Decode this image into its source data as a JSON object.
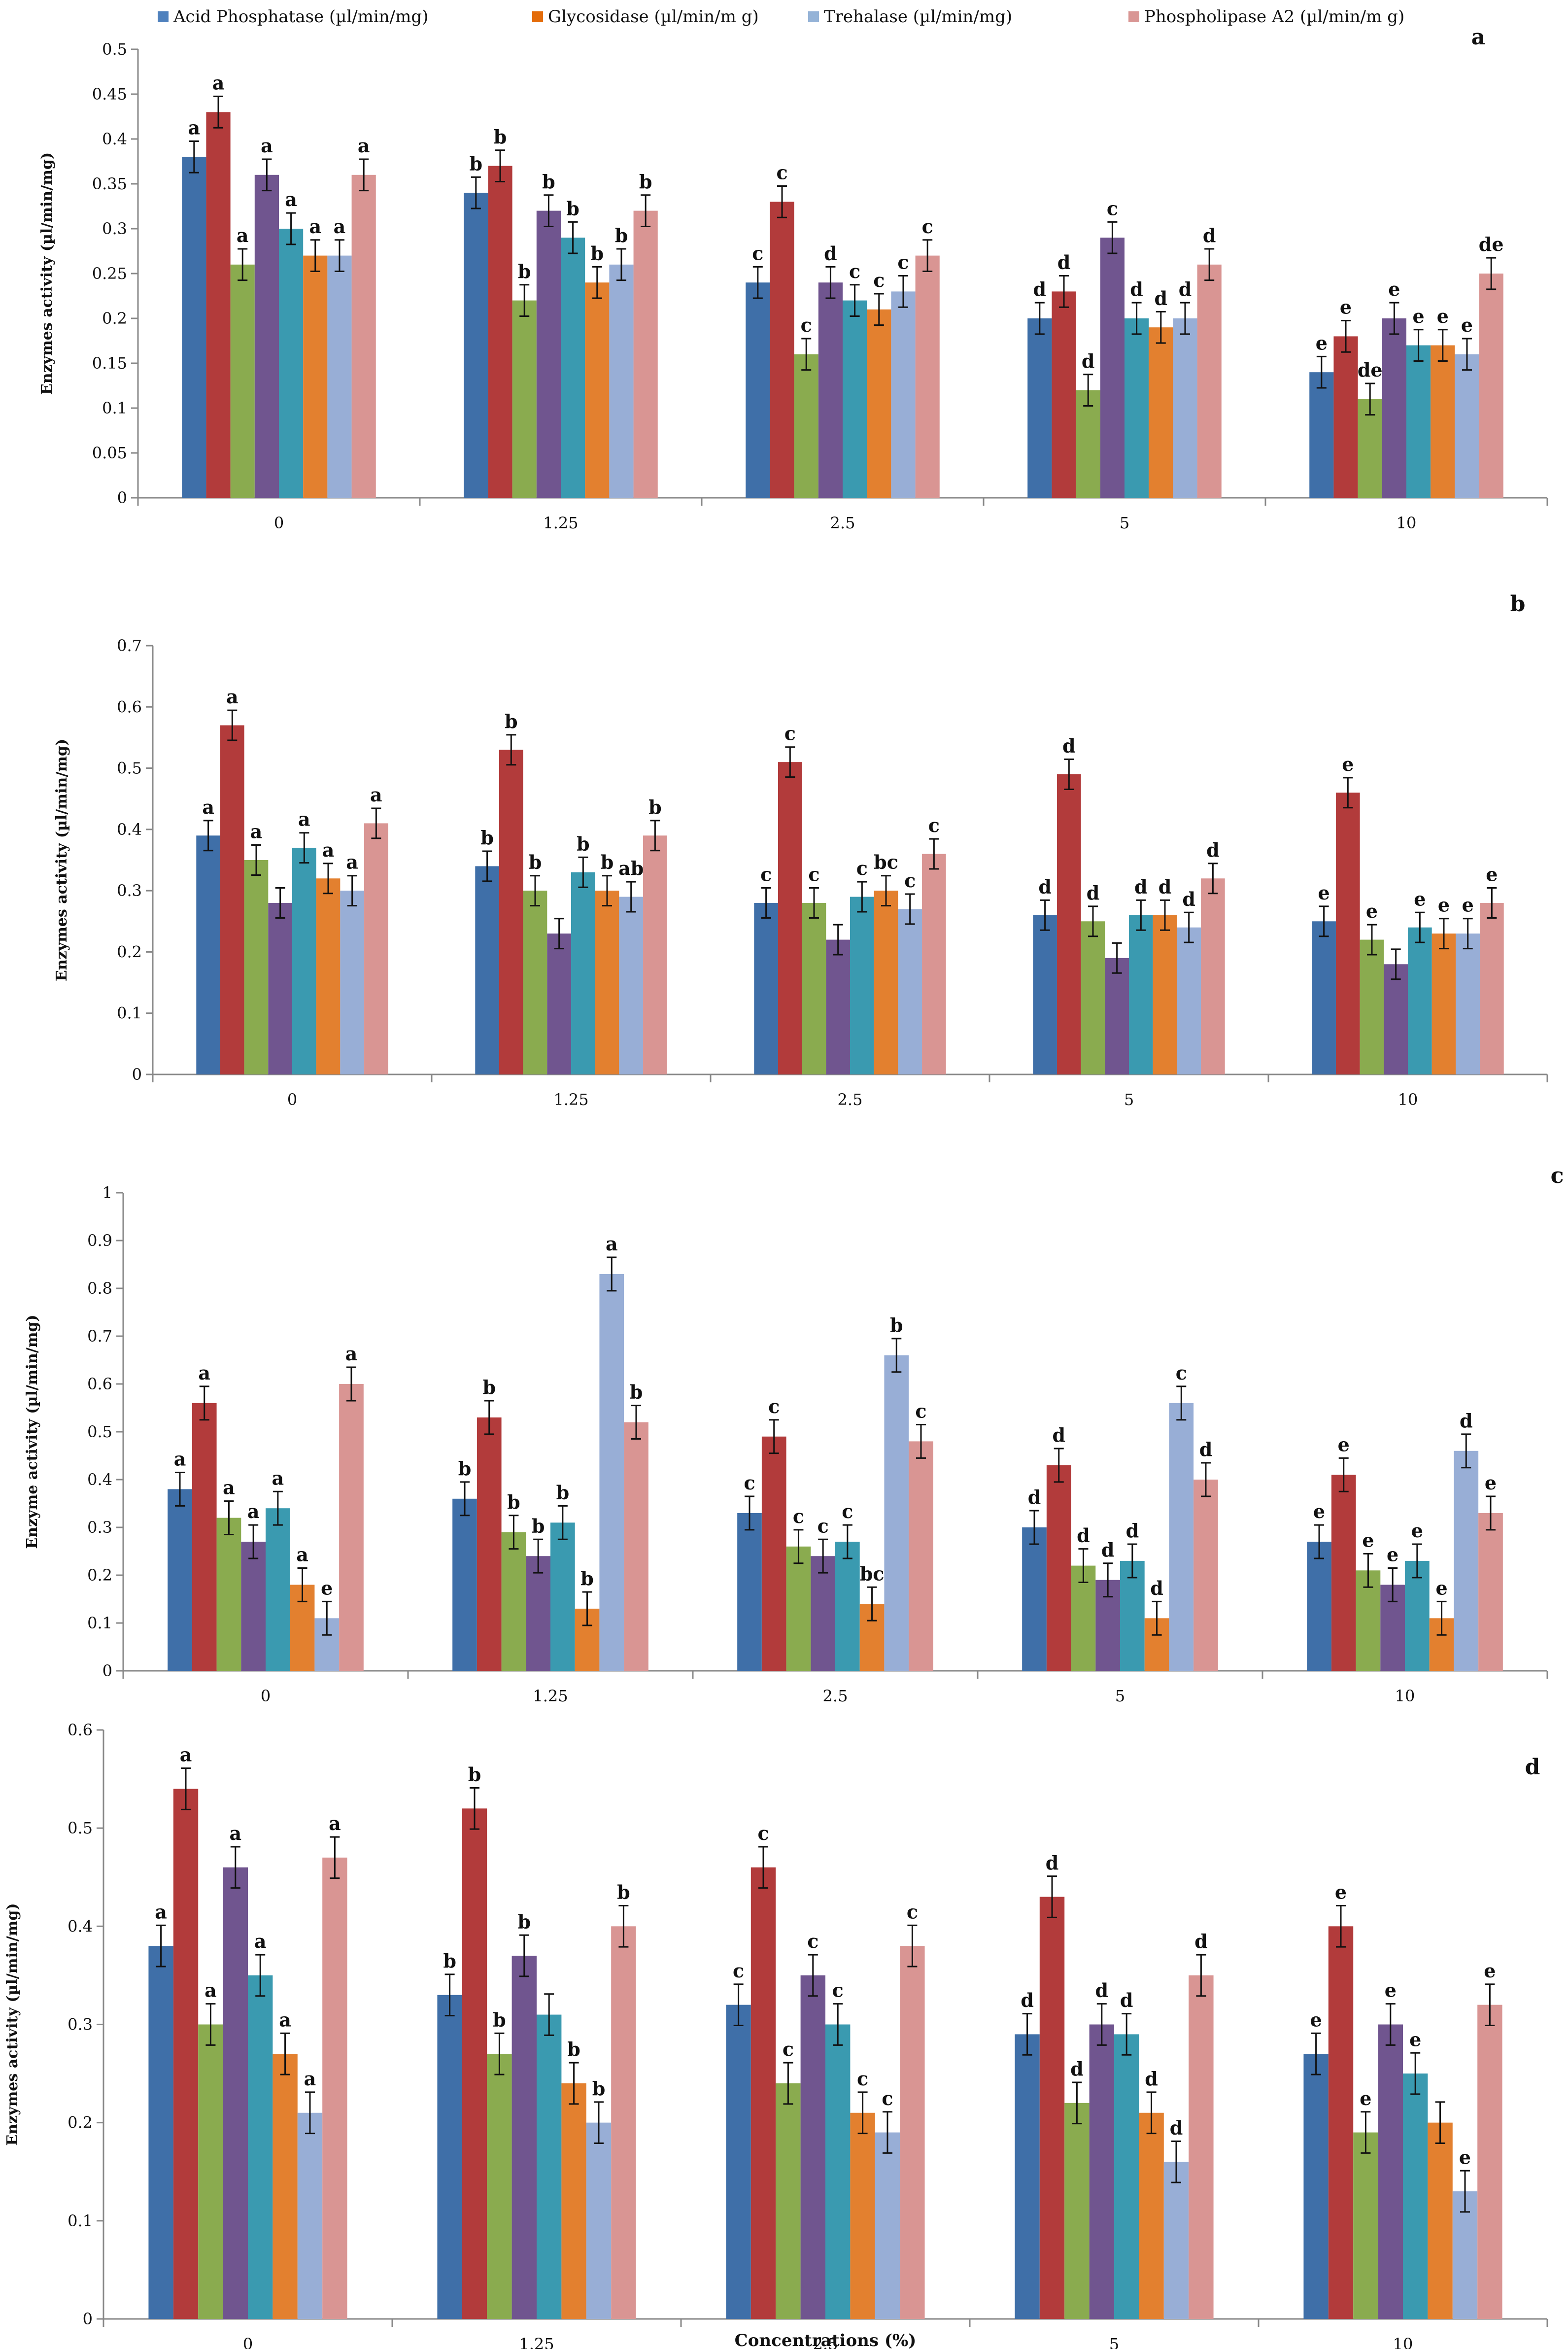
{
  "legend": [
    {
      "label": "Acid Phosphatase (µl/min/mg)",
      "color": "#4f81bd"
    },
    {
      "label": "Glycosidase (µl/min/m g)",
      "color": "#e46c0a"
    },
    {
      "label": "Trehalase (µl/min/mg)",
      "color": "#95b3d7"
    },
    {
      "label": "Phospholipase A2  (µl/min/m g)",
      "color": "#d99694"
    }
  ],
  "chart_data": [
    {
      "type": "bar",
      "panel_label": "a",
      "categories": [
        "0",
        "1.25",
        "2.5",
        "5",
        "10"
      ],
      "ylabel": "Enzymes activity (µl/min/mg)",
      "xlabel": "",
      "ylim": [
        0,
        0.5
      ],
      "yticks": [
        0,
        0.05,
        0.1,
        0.15,
        0.2,
        0.25,
        0.3,
        0.35,
        0.4,
        0.45,
        0.5
      ],
      "ytick_labels": [
        "0",
        "0.05",
        "0.1",
        "0.15",
        "0.2",
        "0.25",
        "0.3",
        "0.35",
        "0.4",
        "0.45",
        "0.5"
      ],
      "series": [
        {
          "color": "#3f6fa8",
          "values": [
            0.38,
            0.34,
            0.24,
            0.2,
            0.14
          ],
          "labels": [
            "a",
            "b",
            "c",
            "d",
            "e"
          ]
        },
        {
          "color": "#b23b3b",
          "values": [
            0.43,
            0.37,
            0.33,
            0.23,
            0.18
          ],
          "labels": [
            "a",
            "b",
            "c",
            "d",
            "e"
          ]
        },
        {
          "color": "#8aab4f",
          "values": [
            0.26,
            0.22,
            0.16,
            0.12,
            0.11
          ],
          "labels": [
            "a",
            "b",
            "c",
            "d",
            "de"
          ]
        },
        {
          "color": "#70558f",
          "values": [
            0.36,
            0.32,
            0.24,
            0.29,
            0.2
          ],
          "labels": [
            "a",
            "b",
            "d",
            "c",
            "e"
          ]
        },
        {
          "color": "#3a9ab0",
          "values": [
            0.3,
            0.29,
            0.22,
            0.2,
            0.17
          ],
          "labels": [
            "a",
            "b",
            "c",
            "d",
            "e"
          ]
        },
        {
          "color": "#e3802f",
          "values": [
            0.27,
            0.24,
            0.21,
            0.19,
            0.17
          ],
          "labels": [
            "a",
            "b",
            "c",
            "d",
            "e"
          ]
        },
        {
          "color": "#98aed6",
          "values": [
            0.27,
            0.26,
            0.23,
            0.2,
            0.16
          ],
          "labels": [
            "a",
            "b",
            "c",
            "d",
            "e"
          ]
        },
        {
          "color": "#d99593",
          "values": [
            0.36,
            0.32,
            0.27,
            0.26,
            0.25
          ],
          "labels": [
            "a",
            "b",
            "c",
            "d",
            "de"
          ]
        }
      ]
    },
    {
      "type": "bar",
      "panel_label": "b",
      "categories": [
        "0",
        "1.25",
        "2.5",
        "5",
        "10"
      ],
      "ylabel": "Enzymes activity (µl/min/mg)",
      "xlabel": "",
      "ylim": [
        0,
        0.7
      ],
      "yticks": [
        0,
        0.1,
        0.2,
        0.3,
        0.4,
        0.5,
        0.6,
        0.7
      ],
      "ytick_labels": [
        "0",
        "0.1",
        "0.2",
        "0.3",
        "0.4",
        "0.5",
        "0.6",
        "0.7"
      ],
      "series": [
        {
          "color": "#3f6fa8",
          "values": [
            0.39,
            0.34,
            0.28,
            0.26,
            0.25
          ],
          "labels": [
            "a",
            "b",
            "c",
            "d",
            "e"
          ]
        },
        {
          "color": "#b23b3b",
          "values": [
            0.57,
            0.53,
            0.51,
            0.49,
            0.46
          ],
          "labels": [
            "a",
            "b",
            "c",
            "d",
            "e"
          ]
        },
        {
          "color": "#8aab4f",
          "values": [
            0.35,
            0.3,
            0.28,
            0.25,
            0.22
          ],
          "labels": [
            "a",
            "b",
            "c",
            "d",
            "e"
          ]
        },
        {
          "color": "#70558f",
          "values": [
            0.28,
            0.23,
            0.22,
            0.19,
            0.18
          ],
          "labels": [
            "",
            "",
            "",
            "",
            ""
          ]
        },
        {
          "color": "#3a9ab0",
          "values": [
            0.37,
            0.33,
            0.29,
            0.26,
            0.24
          ],
          "labels": [
            "a",
            "b",
            "c",
            "d",
            "e"
          ]
        },
        {
          "color": "#e3802f",
          "values": [
            0.32,
            0.3,
            0.3,
            0.26,
            0.23
          ],
          "labels": [
            "a",
            "b",
            "bc",
            "d",
            "e"
          ]
        },
        {
          "color": "#98aed6",
          "values": [
            0.3,
            0.29,
            0.27,
            0.24,
            0.23
          ],
          "labels": [
            "a",
            "ab",
            "c",
            "d",
            "e"
          ]
        },
        {
          "color": "#d99593",
          "values": [
            0.41,
            0.39,
            0.36,
            0.32,
            0.28
          ],
          "labels": [
            "a",
            "b",
            "c",
            "d",
            "e"
          ]
        }
      ]
    },
    {
      "type": "bar",
      "panel_label": "c",
      "categories": [
        "0",
        "1.25",
        "2.5",
        "5",
        "10"
      ],
      "ylabel": "Enzyme activity (µl/min/mg)",
      "xlabel": "",
      "ylim": [
        0,
        1
      ],
      "yticks": [
        0,
        0.1,
        0.2,
        0.3,
        0.4,
        0.5,
        0.6,
        0.7,
        0.8,
        0.9,
        1
      ],
      "ytick_labels": [
        "0",
        "0.1",
        "0.2",
        "0.3",
        "0.4",
        "0.5",
        "0.6",
        "0.7",
        "0.8",
        "0.9",
        "1"
      ],
      "series": [
        {
          "color": "#3f6fa8",
          "values": [
            0.38,
            0.36,
            0.33,
            0.3,
            0.27
          ],
          "labels": [
            "a",
            "b",
            "c",
            "d",
            "e"
          ]
        },
        {
          "color": "#b23b3b",
          "values": [
            0.56,
            0.53,
            0.49,
            0.43,
            0.41
          ],
          "labels": [
            "a",
            "b",
            "c",
            "d",
            "e"
          ]
        },
        {
          "color": "#8aab4f",
          "values": [
            0.32,
            0.29,
            0.26,
            0.22,
            0.21
          ],
          "labels": [
            "a",
            "b",
            "c",
            "d",
            "e"
          ]
        },
        {
          "color": "#70558f",
          "values": [
            0.27,
            0.24,
            0.24,
            0.19,
            0.18
          ],
          "labels": [
            "a",
            "b",
            "c",
            "d",
            "e"
          ]
        },
        {
          "color": "#3a9ab0",
          "values": [
            0.34,
            0.31,
            0.27,
            0.23,
            0.23
          ],
          "labels": [
            "a",
            "b",
            "c",
            "d",
            "e"
          ]
        },
        {
          "color": "#e3802f",
          "values": [
            0.18,
            0.13,
            0.14,
            0.11,
            0.11
          ],
          "labels": [
            "a",
            "b",
            "bc",
            "d",
            "e"
          ]
        },
        {
          "color": "#98aed6",
          "values": [
            0.11,
            0.83,
            0.66,
            0.56,
            0.46
          ],
          "labels": [
            "e",
            "a",
            "b",
            "c",
            "d"
          ]
        },
        {
          "color": "#d99593",
          "values": [
            0.6,
            0.52,
            0.48,
            0.4,
            0.33
          ],
          "labels": [
            "a",
            "b",
            "c",
            "d",
            "e"
          ]
        }
      ]
    },
    {
      "type": "bar",
      "panel_label": "d",
      "categories": [
        "0",
        "1.25",
        "2.5",
        "5",
        "10"
      ],
      "ylabel": "Enzymes activity (µl/min/mg)",
      "xlabel": "Concentrations (%)",
      "ylim": [
        0,
        0.6
      ],
      "yticks": [
        0,
        0.1,
        0.2,
        0.3,
        0.4,
        0.5,
        0.6
      ],
      "ytick_labels": [
        "0",
        "0.1",
        "0.2",
        "0.3",
        "0.4",
        "0.5",
        "0.6"
      ],
      "series": [
        {
          "color": "#3f6fa8",
          "values": [
            0.38,
            0.33,
            0.32,
            0.29,
            0.27
          ],
          "labels": [
            "a",
            "b",
            "c",
            "d",
            "e"
          ]
        },
        {
          "color": "#b23b3b",
          "values": [
            0.54,
            0.52,
            0.46,
            0.43,
            0.4
          ],
          "labels": [
            "a",
            "b",
            "c",
            "d",
            "e"
          ]
        },
        {
          "color": "#8aab4f",
          "values": [
            0.3,
            0.27,
            0.24,
            0.22,
            0.19
          ],
          "labels": [
            "a",
            "b",
            "c",
            "d",
            "e"
          ]
        },
        {
          "color": "#70558f",
          "values": [
            0.46,
            0.37,
            0.35,
            0.3,
            0.3
          ],
          "labels": [
            "a",
            "b",
            "c",
            "d",
            "e"
          ]
        },
        {
          "color": "#3a9ab0",
          "values": [
            0.35,
            0.31,
            0.3,
            0.29,
            0.25
          ],
          "labels": [
            "a",
            "",
            "c",
            "d",
            "e"
          ]
        },
        {
          "color": "#e3802f",
          "values": [
            0.27,
            0.24,
            0.21,
            0.21,
            0.2
          ],
          "labels": [
            "a",
            "b",
            "c",
            "d",
            ""
          ]
        },
        {
          "color": "#98aed6",
          "values": [
            0.21,
            0.2,
            0.19,
            0.16,
            0.13
          ],
          "labels": [
            "a",
            "b",
            "c",
            "d",
            "e"
          ]
        },
        {
          "color": "#d99593",
          "values": [
            0.47,
            0.4,
            0.38,
            0.35,
            0.32
          ],
          "labels": [
            "a",
            "b",
            "c",
            "d",
            "e"
          ]
        }
      ]
    }
  ]
}
